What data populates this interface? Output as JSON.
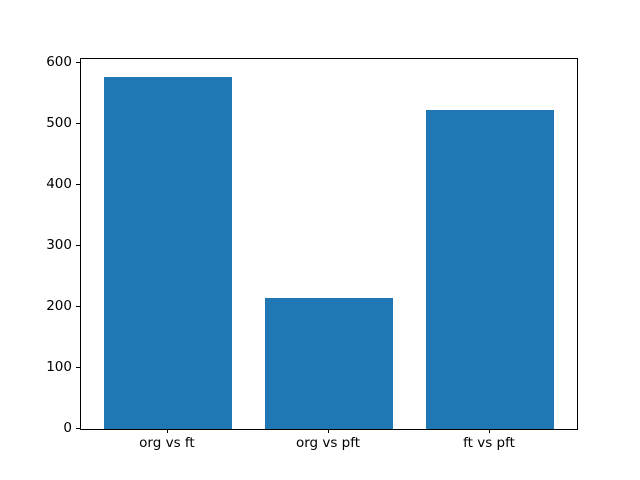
{
  "figure": {
    "background_color": "#ffffff",
    "frame_color": "#000000"
  },
  "chart_data": {
    "type": "bar",
    "title": "",
    "xlabel": "",
    "ylabel": "",
    "categories": [
      "org vs ft",
      "org vs pft",
      "ft vs pft"
    ],
    "values": [
      577,
      215,
      522
    ],
    "bar_color": "#1f77b4",
    "yticks": [
      0,
      100,
      200,
      300,
      400,
      500,
      600
    ],
    "ylim": [
      0,
      606
    ],
    "xlim": [
      -0.54,
      2.54
    ],
    "bar_width": 0.8,
    "grid": false,
    "legend": null
  }
}
